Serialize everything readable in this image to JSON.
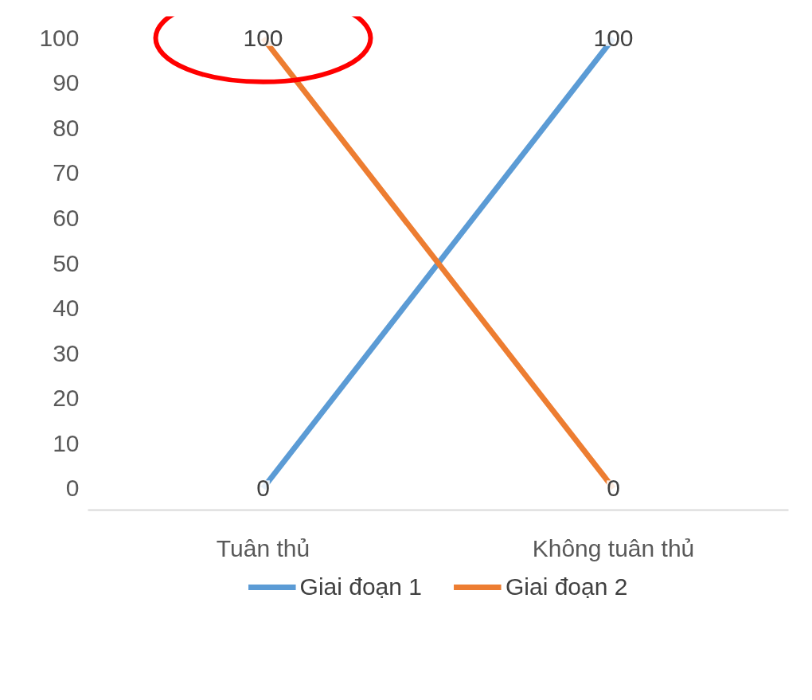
{
  "chart_data": {
    "type": "line",
    "categories": [
      "Tuân thủ",
      "Không tuân thủ"
    ],
    "series": [
      {
        "name": "Giai đoạn 1",
        "color": "#5b9bd5",
        "values": [
          0,
          100
        ]
      },
      {
        "name": "Giai đoạn 2",
        "color": "#ed7d31",
        "values": [
          100,
          0
        ]
      }
    ],
    "ylim": [
      0,
      100
    ],
    "yticks": [
      0,
      10,
      20,
      30,
      40,
      50,
      60,
      70,
      80,
      90,
      100
    ],
    "grid": false,
    "legend": "bottom",
    "data_labels": true,
    "line_style": "solid"
  }
}
